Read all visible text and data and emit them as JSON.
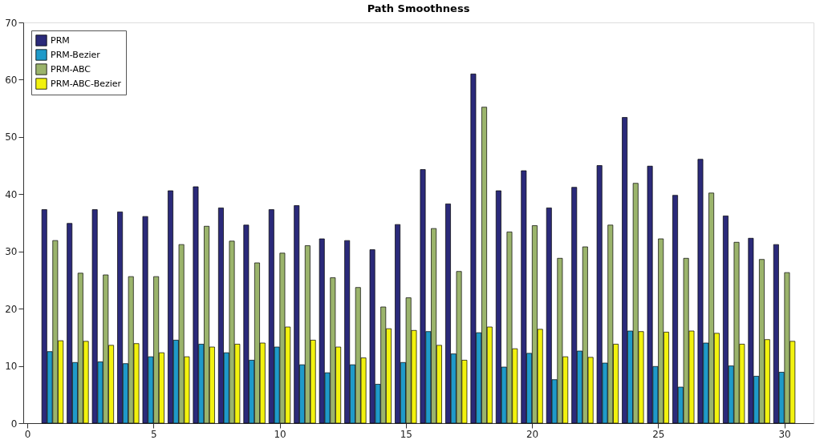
{
  "chart_data": {
    "type": "bar",
    "title": "Path Smoothness",
    "x": [
      1,
      2,
      3,
      4,
      5,
      6,
      7,
      8,
      9,
      10,
      11,
      12,
      13,
      14,
      15,
      16,
      17,
      18,
      19,
      20,
      21,
      22,
      23,
      24,
      25,
      26,
      27,
      28,
      29,
      30
    ],
    "series": [
      {
        "name": "PRM",
        "color": "#2b2a7a",
        "values": [
          37.3,
          34.9,
          37.3,
          36.9,
          36.1,
          40.6,
          41.3,
          37.6,
          34.6,
          37.3,
          38.0,
          32.2,
          31.9,
          30.3,
          34.7,
          44.3,
          38.3,
          61.0,
          40.6,
          44.1,
          37.6,
          41.2,
          45.0,
          53.4,
          44.9,
          39.8,
          46.1,
          36.2,
          32.3,
          31.2
        ]
      },
      {
        "name": "PRM-Bezier",
        "color": "#1f9ac9",
        "values": [
          12.5,
          10.6,
          10.7,
          10.4,
          11.6,
          14.5,
          13.8,
          12.3,
          11.0,
          13.3,
          10.2,
          8.8,
          10.2,
          6.8,
          10.6,
          16.0,
          12.1,
          15.8,
          9.8,
          12.2,
          7.6,
          12.6,
          10.5,
          16.1,
          9.9,
          6.3,
          14.0,
          10.0,
          8.2,
          8.9
        ]
      },
      {
        "name": "PRM-ABC",
        "color": "#9bb46c",
        "values": [
          31.9,
          26.2,
          25.9,
          25.6,
          25.6,
          31.2,
          34.4,
          31.8,
          28.0,
          29.7,
          31.0,
          25.4,
          23.7,
          20.3,
          21.9,
          34.0,
          26.5,
          55.2,
          33.4,
          34.5,
          28.8,
          30.8,
          34.6,
          41.9,
          32.2,
          28.8,
          40.2,
          31.6,
          28.6,
          26.3
        ]
      },
      {
        "name": "PRM-ABC-Bezier",
        "color": "#f2f20f",
        "values": [
          14.4,
          14.3,
          13.6,
          13.9,
          12.3,
          11.6,
          13.3,
          13.8,
          14.0,
          16.8,
          14.5,
          13.3,
          11.4,
          16.5,
          16.2,
          13.6,
          11.0,
          16.8,
          13.0,
          16.4,
          11.6,
          11.5,
          13.8,
          16.0,
          15.9,
          16.1,
          15.7,
          13.8,
          14.6,
          14.3
        ]
      }
    ],
    "xlim": [
      0,
      31
    ],
    "xticks": [
      0,
      5,
      10,
      15,
      20,
      25,
      30
    ],
    "ylim": [
      0,
      70
    ],
    "yticks": [
      0,
      10,
      20,
      30,
      40,
      50,
      60,
      70
    ],
    "grid": false,
    "legend": "top left"
  }
}
